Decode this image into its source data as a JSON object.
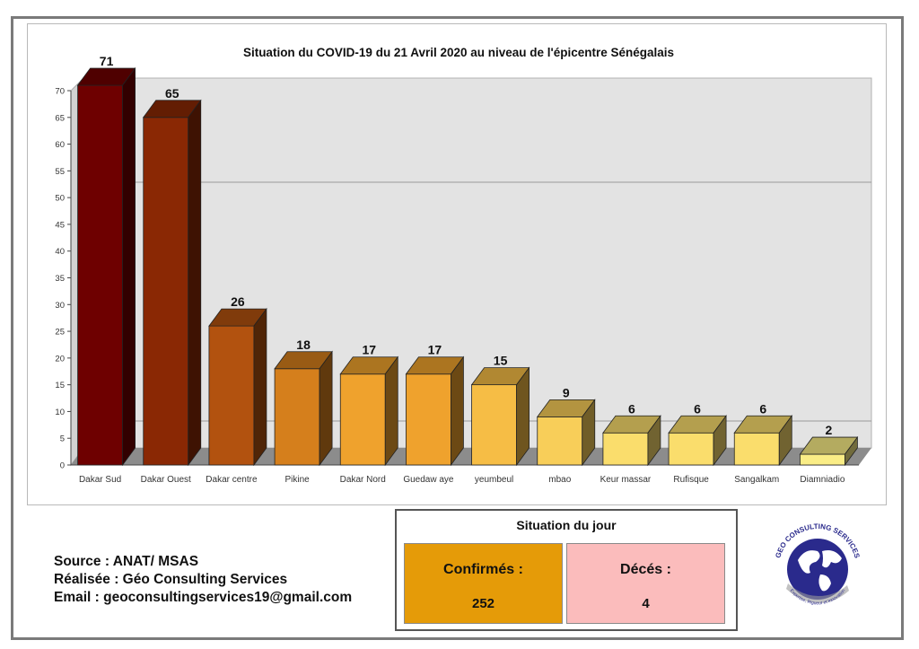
{
  "chart_data": {
    "type": "bar",
    "title": "Situation du COVID-19 du 21 Avril 2020 au niveau de l'épicentre Sénégalais",
    "categories": [
      "Dakar Sud",
      "Dakar Ouest",
      "Dakar centre",
      "Pikine",
      "Dakar Nord",
      "Guedaw aye",
      "yeumbeul",
      "mbao",
      "Keur massar",
      "Rufisque",
      "Sangalkam",
      "Diamniadio"
    ],
    "values": [
      71,
      65,
      26,
      18,
      17,
      17,
      15,
      9,
      6,
      6,
      6,
      2
    ],
    "ylim": [
      0,
      70
    ],
    "yticks": [
      0,
      5,
      10,
      15,
      20,
      25,
      30,
      35,
      40,
      45,
      50,
      55,
      60,
      65,
      70
    ],
    "colors": [
      "#6e0000",
      "#8a2804",
      "#b2520f",
      "#d57f1c",
      "#efa22d",
      "#efa22d",
      "#f6bd45",
      "#f8ce59",
      "#fadd6c",
      "#fadd6c",
      "#fadd6c",
      "#faed86"
    ],
    "xlabel": "",
    "ylabel": ""
  },
  "source": {
    "source_line": "Source : ANAT/ MSAS",
    "made_by_line": "Réalisée : Géo Consulting Services",
    "email_line": "Email : geoconsultingservices19@gmail.com"
  },
  "summary": {
    "title": "Situation du jour",
    "confirmed_label": "Confirmés :",
    "confirmed_value": "252",
    "deaths_label": "Décés :",
    "deaths_value": "4"
  },
  "logo": {
    "top_text": "GEO CONSULTING SERVICES",
    "bottom_text": "Expertise, Rigueur et Innovation"
  }
}
